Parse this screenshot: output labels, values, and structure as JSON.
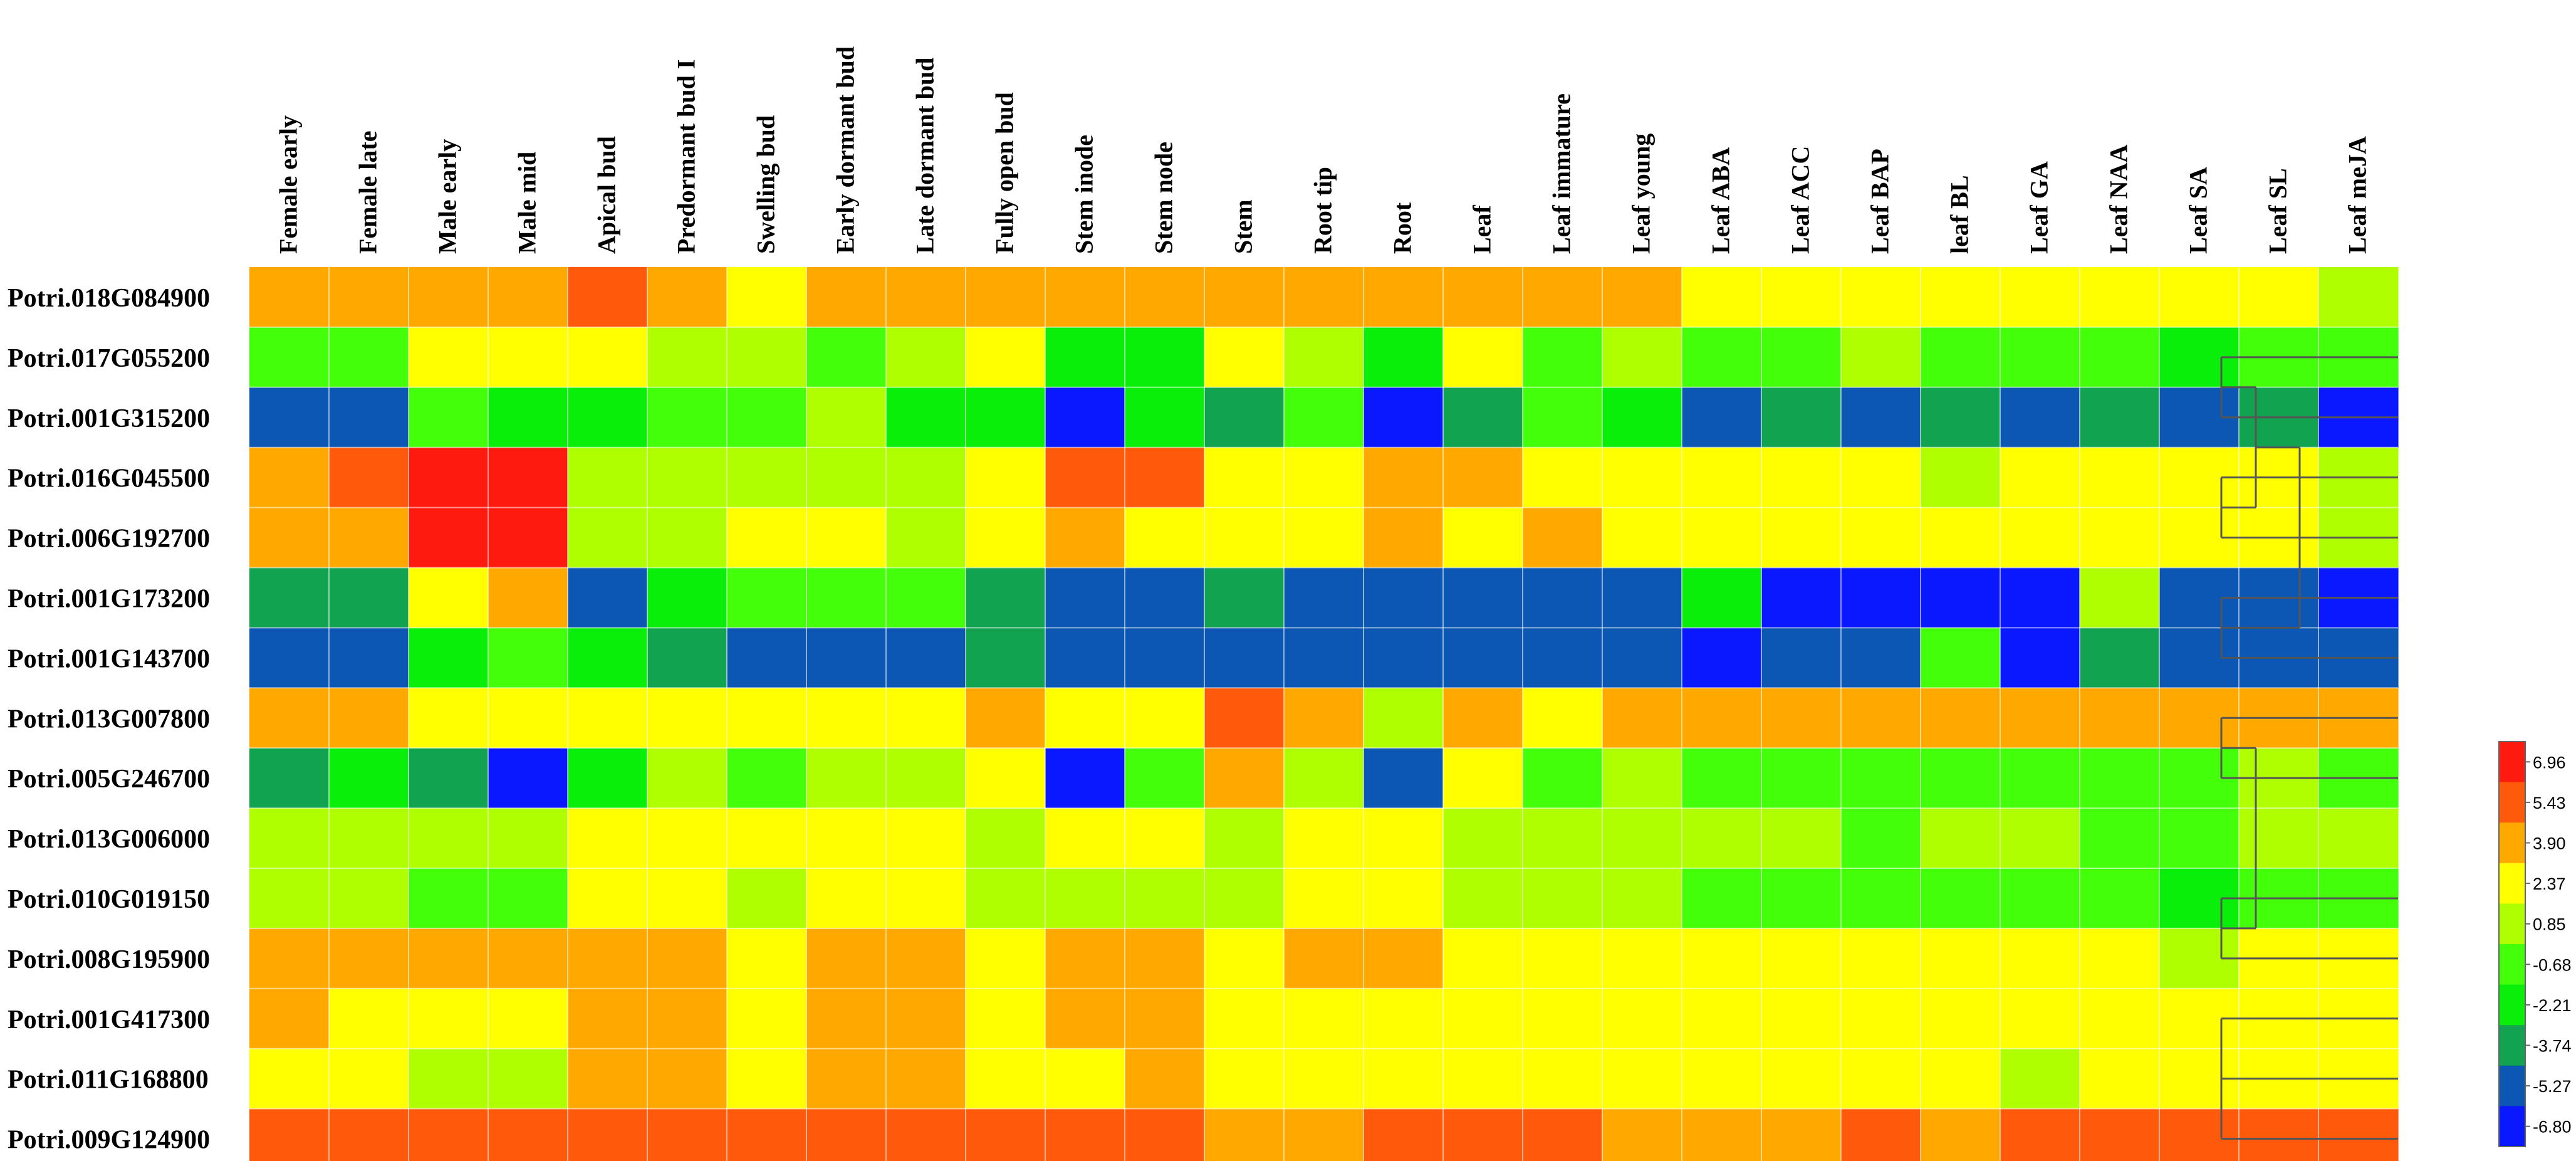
{
  "chart_data": {
    "type": "heatmap",
    "columns": [
      "Female early",
      "Female late",
      "Male early",
      "Male mid",
      "Apical bud",
      "Predormant bud I",
      "Swelling bud",
      "Early dormant bud",
      "Late dormant bud",
      "Fully open bud",
      "Stem inode",
      "Stem node",
      "Stem",
      "Root tip",
      "Root",
      "Leaf",
      "Leaf immature",
      "Leaf young",
      "Leaf ABA",
      "Leaf ACC",
      "Leaf BAP",
      "leaf BL",
      "Leaf GA",
      "Leaf NAA",
      "Leaf SA",
      "Leaf SL",
      "Leaf meJA"
    ],
    "rows": [
      "Potri.018G084900",
      "Potri.017G055200",
      "Potri.001G315200",
      "Potri.016G045500",
      "Potri.006G192700",
      "Potri.001G173200",
      "Potri.001G143700",
      "Potri.013G007800",
      "Potri.005G246700",
      "Potri.013G006000",
      "Potri.010G019150",
      "Potri.008G195900",
      "Potri.001G417300",
      "Potri.011G168800",
      "Potri.009G124900"
    ],
    "values": [
      [
        3.9,
        3.9,
        3.9,
        3.9,
        5.43,
        3.9,
        2.37,
        3.9,
        3.9,
        3.9,
        3.9,
        3.9,
        3.9,
        3.9,
        3.9,
        3.9,
        3.9,
        3.9,
        2.37,
        2.37,
        2.37,
        2.37,
        2.37,
        2.37,
        2.37,
        2.37,
        0.85
      ],
      [
        -0.68,
        -0.68,
        2.37,
        2.37,
        2.37,
        0.85,
        0.85,
        -0.68,
        0.85,
        2.37,
        -2.21,
        -2.21,
        2.37,
        0.85,
        -2.21,
        2.37,
        -0.68,
        0.85,
        -0.68,
        -0.68,
        0.85,
        -0.68,
        -0.68,
        -0.68,
        -2.21,
        -0.68,
        -0.68
      ],
      [
        -5.27,
        -5.27,
        -0.68,
        -2.21,
        -2.21,
        -0.68,
        -0.68,
        0.85,
        -2.21,
        -2.21,
        -6.8,
        -2.21,
        -3.74,
        -0.68,
        -6.8,
        -3.74,
        -0.68,
        -2.21,
        -5.27,
        -3.74,
        -5.27,
        -3.74,
        -5.27,
        -3.74,
        -5.27,
        -3.74,
        -6.8
      ],
      [
        3.9,
        5.43,
        6.96,
        6.96,
        0.85,
        0.85,
        0.85,
        0.85,
        0.85,
        2.37,
        5.43,
        5.43,
        2.37,
        2.37,
        3.9,
        3.9,
        2.37,
        2.37,
        2.37,
        2.37,
        2.37,
        0.85,
        2.37,
        2.37,
        2.37,
        2.37,
        0.85
      ],
      [
        3.9,
        3.9,
        6.96,
        6.96,
        0.85,
        0.85,
        2.37,
        2.37,
        0.85,
        2.37,
        3.9,
        2.37,
        2.37,
        2.37,
        3.9,
        2.37,
        3.9,
        2.37,
        2.37,
        2.37,
        2.37,
        2.37,
        2.37,
        2.37,
        2.37,
        2.37,
        0.85
      ],
      [
        -3.74,
        -3.74,
        2.37,
        3.9,
        -5.27,
        -2.21,
        -0.68,
        -0.68,
        -0.68,
        -3.74,
        -5.27,
        -5.27,
        -3.74,
        -5.27,
        -5.27,
        -5.27,
        -5.27,
        -5.27,
        -2.21,
        -6.8,
        -6.8,
        -6.8,
        -6.8,
        0.85,
        -5.27,
        -5.27,
        -6.8
      ],
      [
        -5.27,
        -5.27,
        -2.21,
        -0.68,
        -2.21,
        -3.74,
        -5.27,
        -5.27,
        -5.27,
        -3.74,
        -5.27,
        -5.27,
        -5.27,
        -5.27,
        -5.27,
        -5.27,
        -5.27,
        -5.27,
        -6.8,
        -5.27,
        -5.27,
        -0.68,
        -6.8,
        -3.74,
        -5.27,
        -5.27,
        -5.27
      ],
      [
        3.9,
        3.9,
        2.37,
        2.37,
        2.37,
        2.37,
        2.37,
        2.37,
        2.37,
        3.9,
        2.37,
        2.37,
        5.43,
        3.9,
        0.85,
        3.9,
        2.37,
        3.9,
        3.9,
        3.9,
        3.9,
        3.9,
        3.9,
        3.9,
        3.9,
        3.9,
        3.9
      ],
      [
        -3.74,
        -2.21,
        -3.74,
        -6.8,
        -2.21,
        0.85,
        -0.68,
        0.85,
        0.85,
        2.37,
        -6.8,
        -0.68,
        3.9,
        0.85,
        -5.27,
        2.37,
        -0.68,
        0.85,
        -0.68,
        -0.68,
        -0.68,
        -0.68,
        -0.68,
        -0.68,
        -0.68,
        0.85,
        -0.68
      ],
      [
        0.85,
        0.85,
        0.85,
        0.85,
        2.37,
        2.37,
        2.37,
        2.37,
        2.37,
        0.85,
        2.37,
        2.37,
        0.85,
        2.37,
        2.37,
        0.85,
        0.85,
        0.85,
        0.85,
        0.85,
        -0.68,
        0.85,
        0.85,
        -0.68,
        -0.68,
        0.85,
        0.85
      ],
      [
        0.85,
        0.85,
        -0.68,
        -0.68,
        2.37,
        2.37,
        0.85,
        2.37,
        2.37,
        0.85,
        0.85,
        0.85,
        0.85,
        2.37,
        2.37,
        0.85,
        0.85,
        0.85,
        -0.68,
        -0.68,
        -0.68,
        -0.68,
        -0.68,
        -0.68,
        -2.21,
        -0.68,
        -0.68
      ],
      [
        3.9,
        3.9,
        3.9,
        3.9,
        3.9,
        3.9,
        2.37,
        3.9,
        3.9,
        2.37,
        3.9,
        3.9,
        2.37,
        3.9,
        3.9,
        2.37,
        2.37,
        2.37,
        2.37,
        2.37,
        2.37,
        2.37,
        2.37,
        2.37,
        0.85,
        2.37,
        2.37
      ],
      [
        3.9,
        2.37,
        2.37,
        2.37,
        3.9,
        3.9,
        2.37,
        3.9,
        3.9,
        2.37,
        3.9,
        3.9,
        2.37,
        2.37,
        2.37,
        2.37,
        2.37,
        2.37,
        2.37,
        2.37,
        2.37,
        2.37,
        2.37,
        2.37,
        2.37,
        2.37,
        2.37
      ],
      [
        2.37,
        2.37,
        0.85,
        0.85,
        3.9,
        3.9,
        2.37,
        3.9,
        3.9,
        2.37,
        2.37,
        3.9,
        2.37,
        2.37,
        2.37,
        2.37,
        2.37,
        2.37,
        2.37,
        2.37,
        2.37,
        2.37,
        0.85,
        2.37,
        2.37,
        2.37,
        2.37
      ],
      [
        5.43,
        5.43,
        5.43,
        5.43,
        5.43,
        5.43,
        5.43,
        5.43,
        5.43,
        5.43,
        5.43,
        5.43,
        3.9,
        3.9,
        5.43,
        5.43,
        5.43,
        3.9,
        3.9,
        3.9,
        5.43,
        3.9,
        5.43,
        5.43,
        5.43,
        5.43,
        5.43
      ]
    ],
    "color_scale": {
      "ticks": [
        6.96,
        5.43,
        3.9,
        2.37,
        0.85,
        -0.68,
        -2.21,
        -3.74,
        -5.27,
        -6.8
      ],
      "tick_labels": [
        "6.96",
        "5.43",
        "3.90",
        "2.37",
        "0.85",
        "-0.68",
        "-2.21",
        "-3.74",
        "-5.27",
        "-6.80"
      ],
      "colors": [
        "#ff1a0f",
        "#ff5a0c",
        "#ffa800",
        "#ffff00",
        "#b0ff00",
        "#44ff0a",
        "#0aef0a",
        "#11a34f",
        "#0b57b3",
        "#0a18ff"
      ]
    },
    "dendrogram_groups": [
      [
        1,
        2
      ],
      [
        3,
        4
      ],
      [
        5,
        6
      ],
      [
        7,
        8
      ],
      [
        10,
        11
      ],
      [
        12,
        13,
        14
      ]
    ]
  }
}
